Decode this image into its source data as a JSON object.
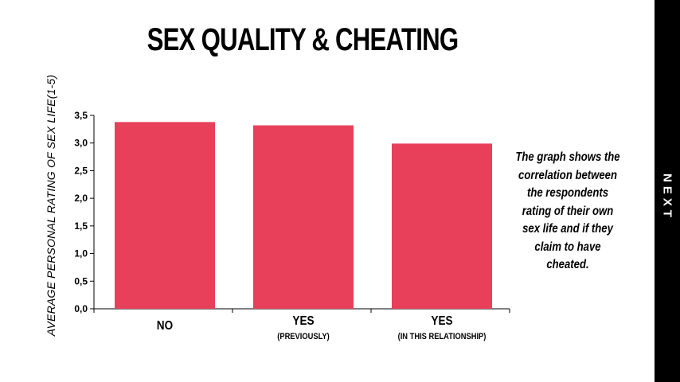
{
  "title": "SEX QUALITY & CHEATING",
  "ylabel": "AVERAGE PERSONAL RATING OF SEX LIFE(1-5)",
  "note": "The graph shows the correlation between the respondents rating of their own sex life and if they claim to have cheated.",
  "next_label": "NEXT",
  "colors": {
    "bar": "#e8405a",
    "background": "#ffffff",
    "sidebar": "#000000"
  },
  "chart_data": {
    "type": "bar",
    "categories": [
      {
        "label": "NO",
        "sublabel": ""
      },
      {
        "label": "YES",
        "sublabel": "(PREVIOUSLY)"
      },
      {
        "label": "YES",
        "sublabel": "(IN THIS RELATIONSHIP)"
      }
    ],
    "values": [
      3.38,
      3.32,
      2.99
    ],
    "ylim": [
      0,
      3.5
    ],
    "yticks": [
      "0,0",
      "0,5",
      "1,0",
      "1,5",
      "2,0",
      "2,5",
      "3,0",
      "3,5"
    ],
    "grid": false,
    "legend": "none"
  }
}
